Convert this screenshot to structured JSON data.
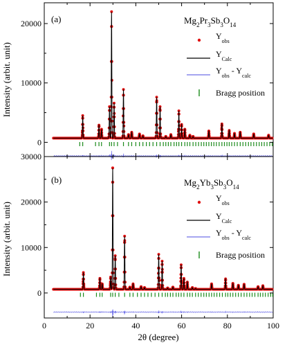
{
  "chart_data": [
    {
      "type": "line",
      "panel_label": "(a)",
      "compound": {
        "base": "Mg",
        "s1": "2",
        "el2": "Pr",
        "s2": "3",
        "el3": "Sb",
        "s3": "3",
        "el4": "O",
        "s4": "14"
      },
      "ylabel": "Intensity (arbit. unit)",
      "ylim": [
        -2400,
        23500
      ],
      "yticks": [
        0,
        10000,
        20000
      ],
      "xlim": [
        0,
        100
      ],
      "background": 700,
      "diff_offset": -2300,
      "peaks": [
        {
          "x": 16.8,
          "y": 4500
        },
        {
          "x": 23.9,
          "y": 2900
        },
        {
          "x": 25.0,
          "y": 2200
        },
        {
          "x": 28.5,
          "y": 6000
        },
        {
          "x": 29.4,
          "y": 22000
        },
        {
          "x": 30.5,
          "y": 6600
        },
        {
          "x": 34.6,
          "y": 8900
        },
        {
          "x": 36.8,
          "y": 1300
        },
        {
          "x": 38.2,
          "y": 1700
        },
        {
          "x": 41.6,
          "y": 1400
        },
        {
          "x": 43.1,
          "y": 1100
        },
        {
          "x": 49.1,
          "y": 7600
        },
        {
          "x": 50.6,
          "y": 6000
        },
        {
          "x": 53.1,
          "y": 1000
        },
        {
          "x": 55.3,
          "y": 1300
        },
        {
          "x": 58.8,
          "y": 5300
        },
        {
          "x": 60.0,
          "y": 3000
        },
        {
          "x": 61.4,
          "y": 2200
        },
        {
          "x": 63.6,
          "y": 1200
        },
        {
          "x": 65.0,
          "y": 1000
        },
        {
          "x": 71.9,
          "y": 1900
        },
        {
          "x": 77.6,
          "y": 3100
        },
        {
          "x": 80.8,
          "y": 2000
        },
        {
          "x": 83.1,
          "y": 1500
        },
        {
          "x": 85.6,
          "y": 1700
        },
        {
          "x": 91.5,
          "y": 1400
        },
        {
          "x": 98.0,
          "y": 1200
        }
      ],
      "bragg_y": -300,
      "bragg_positions": [
        15.5,
        16.8,
        22.4,
        23.9,
        25.0,
        28.5,
        29.4,
        30.5,
        32.0,
        34.6,
        36.8,
        38.2,
        40.0,
        41.6,
        43.1,
        44.6,
        46.0,
        47.5,
        49.1,
        50.6,
        52.0,
        53.1,
        54.2,
        55.3,
        56.7,
        57.8,
        58.8,
        60.0,
        61.4,
        62.5,
        63.6,
        65.0,
        66.2,
        67.4,
        68.6,
        69.7,
        70.8,
        71.9,
        73.0,
        74.1,
        75.2,
        76.4,
        77.6,
        78.7,
        79.8,
        80.8,
        81.9,
        83.1,
        84.3,
        85.6,
        86.8,
        88.0,
        89.2,
        90.3,
        91.5,
        92.7,
        93.9,
        95.0,
        96.1,
        97.3,
        98.5,
        99.6
      ],
      "legend": [
        {
          "kind": "marker",
          "main": "Y",
          "sub": "obs",
          "color": "#e01010"
        },
        {
          "kind": "line",
          "main": "Y",
          "sub": "Calc",
          "color": "#000000"
        },
        {
          "kind": "line",
          "main": "Y",
          "sub": "obs",
          "mid": " - Y",
          "sub2": "calc",
          "color": "#6f6fe8"
        },
        {
          "kind": "bar",
          "main": "Bragg position",
          "color": "#1a8a1a"
        }
      ]
    },
    {
      "type": "line",
      "panel_label": "(b)",
      "compound": {
        "base": "Mg",
        "s1": "2",
        "el2": "Yb",
        "s2": "3",
        "el3": "Sb",
        "s3": "3",
        "el4": "O",
        "s4": "14"
      },
      "ylabel": "Intensity (arbit. unit)",
      "ylim": [
        -5500,
        30000
      ],
      "yticks": [
        0,
        10000,
        20000,
        30000
      ],
      "xlim": [
        0,
        100
      ],
      "xticks": [
        0,
        20,
        40,
        60,
        80,
        100
      ],
      "xlabel": "2θ (degree)",
      "background": 800,
      "diff_offset": -4200,
      "peaks": [
        {
          "x": 17.1,
          "y": 4500
        },
        {
          "x": 24.3,
          "y": 3200
        },
        {
          "x": 25.3,
          "y": 2000
        },
        {
          "x": 29.0,
          "y": 3500
        },
        {
          "x": 29.9,
          "y": 27500
        },
        {
          "x": 31.0,
          "y": 8200
        },
        {
          "x": 35.1,
          "y": 12500
        },
        {
          "x": 37.4,
          "y": 1300
        },
        {
          "x": 38.8,
          "y": 2000
        },
        {
          "x": 42.3,
          "y": 1400
        },
        {
          "x": 43.8,
          "y": 1200
        },
        {
          "x": 50.0,
          "y": 8500
        },
        {
          "x": 51.5,
          "y": 7000
        },
        {
          "x": 53.9,
          "y": 1100
        },
        {
          "x": 56.2,
          "y": 1300
        },
        {
          "x": 59.8,
          "y": 6200
        },
        {
          "x": 61.0,
          "y": 3200
        },
        {
          "x": 62.5,
          "y": 2400
        },
        {
          "x": 64.7,
          "y": 1200
        },
        {
          "x": 66.1,
          "y": 1000
        },
        {
          "x": 73.1,
          "y": 2000
        },
        {
          "x": 79.2,
          "y": 3100
        },
        {
          "x": 82.4,
          "y": 2100
        },
        {
          "x": 84.8,
          "y": 1700
        },
        {
          "x": 87.3,
          "y": 1900
        },
        {
          "x": 93.4,
          "y": 1400
        },
        {
          "x": 95.5,
          "y": 1600
        }
      ],
      "bragg_y": -400,
      "bragg_positions": [
        15.8,
        17.1,
        22.8,
        24.3,
        25.3,
        29.0,
        29.9,
        31.0,
        32.6,
        35.1,
        37.4,
        38.8,
        40.7,
        42.3,
        43.8,
        45.3,
        46.8,
        48.4,
        50.0,
        51.5,
        52.9,
        53.9,
        55.1,
        56.2,
        57.6,
        58.7,
        59.8,
        61.0,
        62.5,
        63.6,
        64.7,
        66.1,
        67.3,
        68.5,
        69.7,
        70.8,
        72.0,
        73.1,
        74.2,
        75.4,
        76.6,
        77.8,
        79.2,
        80.2,
        81.3,
        82.4,
        83.6,
        84.8,
        86.0,
        87.3,
        88.5,
        89.7,
        90.8,
        92.0,
        93.4,
        94.4,
        95.5,
        96.6,
        97.8,
        98.9,
        99.8
      ],
      "legend": [
        {
          "kind": "marker",
          "main": "Y",
          "sub": "obs",
          "color": "#e01010"
        },
        {
          "kind": "line",
          "main": "Y",
          "sub": "Calc",
          "color": "#000000"
        },
        {
          "kind": "line",
          "main": "Y",
          "sub": "obs",
          "mid": " - Y",
          "sub2": "calc",
          "color": "#6f6fe8"
        },
        {
          "kind": "bar",
          "main": "Bragg position",
          "color": "#1a8a1a"
        }
      ]
    }
  ]
}
